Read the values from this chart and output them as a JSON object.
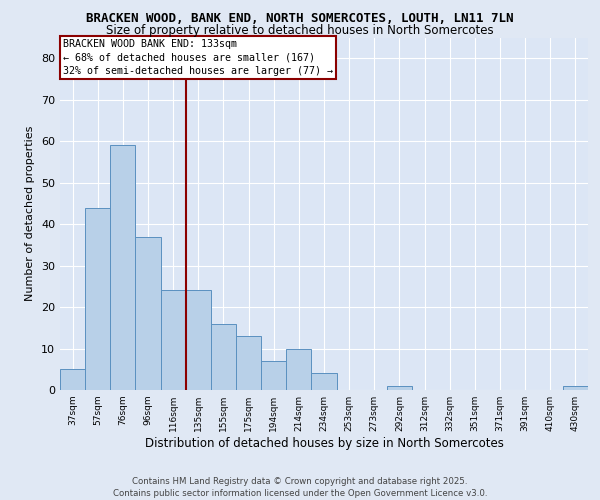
{
  "title": "BRACKEN WOOD, BANK END, NORTH SOMERCOTES, LOUTH, LN11 7LN",
  "subtitle": "Size of property relative to detached houses in North Somercotes",
  "xlabel": "Distribution of detached houses by size in North Somercotes",
  "ylabel": "Number of detached properties",
  "categories": [
    "37sqm",
    "57sqm",
    "76sqm",
    "96sqm",
    "116sqm",
    "135sqm",
    "155sqm",
    "175sqm",
    "194sqm",
    "214sqm",
    "234sqm",
    "253sqm",
    "273sqm",
    "292sqm",
    "312sqm",
    "332sqm",
    "351sqm",
    "371sqm",
    "391sqm",
    "410sqm",
    "430sqm"
  ],
  "values": [
    5,
    44,
    59,
    37,
    24,
    24,
    16,
    13,
    7,
    10,
    4,
    0,
    0,
    1,
    0,
    0,
    0,
    0,
    0,
    0,
    1
  ],
  "bar_color": "#b8d0e8",
  "bar_edge_color": "#5a90c0",
  "vline_color": "#8b0000",
  "vline_index": 4.5,
  "annotation_text": "BRACKEN WOOD BANK END: 133sqm\n← 68% of detached houses are smaller (167)\n32% of semi-detached houses are larger (77) →",
  "annotation_box_color": "#ffffff",
  "annotation_box_edge": "#8b0000",
  "ylim": [
    0,
    85
  ],
  "yticks": [
    0,
    10,
    20,
    30,
    40,
    50,
    60,
    70,
    80
  ],
  "background_color": "#e0e8f4",
  "plot_bg_color": "#dce6f5",
  "grid_color": "#ffffff",
  "title_fontsize": 9,
  "subtitle_fontsize": 8.5,
  "footer": "Contains HM Land Registry data © Crown copyright and database right 2025.\nContains public sector information licensed under the Open Government Licence v3.0."
}
